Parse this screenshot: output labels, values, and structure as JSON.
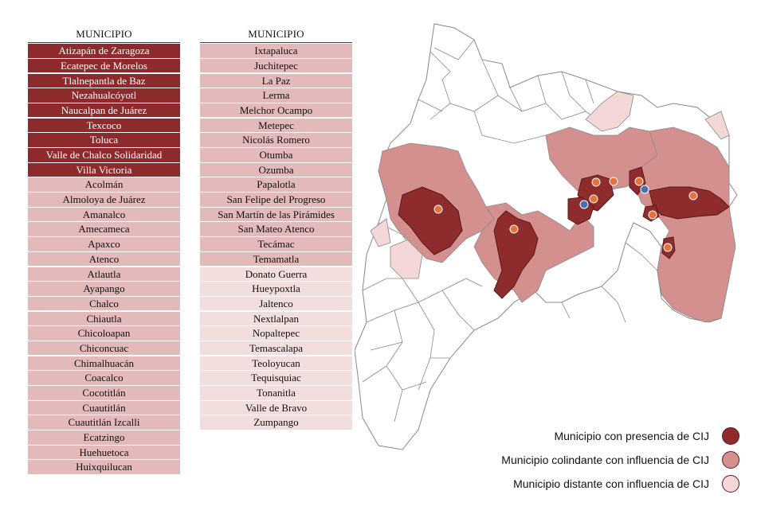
{
  "colors": {
    "presence": "#8c2a2c",
    "colindante": "#e3b9b9",
    "distante": "#f3dede",
    "map_presence": "#8e2b2d",
    "map_colindante": "#d4908e",
    "map_distante": "#f4d8d8",
    "map_none": "#ffffff",
    "map_outline": "#888888",
    "marker_orange": "#e8703a",
    "marker_blue": "#4a6fb5"
  },
  "table_left": {
    "header": "MUNICIPIO",
    "rows": [
      {
        "name": "Atizapán de Zaragoza",
        "category": "presence"
      },
      {
        "name": "Ecatepec de Morelos",
        "category": "presence"
      },
      {
        "name": "Tlalnepantla de Baz",
        "category": "presence"
      },
      {
        "name": "Nezahualcóyotl",
        "category": "presence"
      },
      {
        "name": "Naucalpan de Juárez",
        "category": "presence"
      },
      {
        "name": "Texcoco",
        "category": "presence"
      },
      {
        "name": "Toluca",
        "category": "presence"
      },
      {
        "name": "Valle de Chalco Solidaridad",
        "category": "presence"
      },
      {
        "name": "Villa Victoria",
        "category": "presence"
      },
      {
        "name": "Acolmán",
        "category": "colindante"
      },
      {
        "name": "Almoloya de Juárez",
        "category": "colindante"
      },
      {
        "name": "Amanalco",
        "category": "colindante"
      },
      {
        "name": "Amecameca",
        "category": "colindante"
      },
      {
        "name": "Apaxco",
        "category": "colindante"
      },
      {
        "name": "Atenco",
        "category": "colindante"
      },
      {
        "name": "Atlautla",
        "category": "colindante"
      },
      {
        "name": "Ayapango",
        "category": "colindante"
      },
      {
        "name": "Chalco",
        "category": "colindante"
      },
      {
        "name": "Chiautla",
        "category": "colindante"
      },
      {
        "name": "Chicoloapan",
        "category": "colindante"
      },
      {
        "name": "Chiconcuac",
        "category": "colindante"
      },
      {
        "name": "Chimalhuacán",
        "category": "colindante"
      },
      {
        "name": "Coacalco",
        "category": "colindante"
      },
      {
        "name": "Cocotitlán",
        "category": "colindante"
      },
      {
        "name": "Cuautitlán",
        "category": "colindante"
      },
      {
        "name": "Cuautitlán Izcalli",
        "category": "colindante"
      },
      {
        "name": "Ecatzingo",
        "category": "colindante"
      },
      {
        "name": "Huehuetoca",
        "category": "colindante"
      },
      {
        "name": "Huixquilucan",
        "category": "colindante"
      }
    ]
  },
  "table_right": {
    "header": "MUNICIPIO",
    "rows": [
      {
        "name": "Ixtapaluca",
        "category": "colindante"
      },
      {
        "name": "Juchitepec",
        "category": "colindante"
      },
      {
        "name": "La Paz",
        "category": "colindante"
      },
      {
        "name": "Lerma",
        "category": "colindante"
      },
      {
        "name": "Melchor Ocampo",
        "category": "colindante"
      },
      {
        "name": "Metepec",
        "category": "colindante"
      },
      {
        "name": "Nicolás Romero",
        "category": "colindante"
      },
      {
        "name": "Otumba",
        "category": "colindante"
      },
      {
        "name": "Ozumba",
        "category": "colindante"
      },
      {
        "name": "Papalotla",
        "category": "colindante"
      },
      {
        "name": "San Felipe del Progreso",
        "category": "colindante"
      },
      {
        "name": "San Martín de las Pirámides",
        "category": "colindante"
      },
      {
        "name": "San Mateo Atenco",
        "category": "colindante"
      },
      {
        "name": "Tecámac",
        "category": "colindante"
      },
      {
        "name": "Temamatla",
        "category": "colindante"
      },
      {
        "name": "Donato Guerra",
        "category": "distante"
      },
      {
        "name": "Hueypoxtla",
        "category": "distante"
      },
      {
        "name": "Jaltenco",
        "category": "distante"
      },
      {
        "name": "Nextlalpan",
        "category": "distante"
      },
      {
        "name": "Nopaltepec",
        "category": "distante"
      },
      {
        "name": "Temascalapa",
        "category": "distante"
      },
      {
        "name": "Teoloyucan",
        "category": "distante"
      },
      {
        "name": "Tequisquiac",
        "category": "distante"
      },
      {
        "name": "Tonanitla",
        "category": "distante"
      },
      {
        "name": "Valle de Bravo",
        "category": "distante"
      },
      {
        "name": "Zumpango",
        "category": "distante"
      }
    ]
  },
  "legend": {
    "presence": "Municipio con presencia de CIJ",
    "colindante": "Municipio colindante con influencia de CIJ",
    "distante": "Municipio distante con influencia de CIJ"
  }
}
